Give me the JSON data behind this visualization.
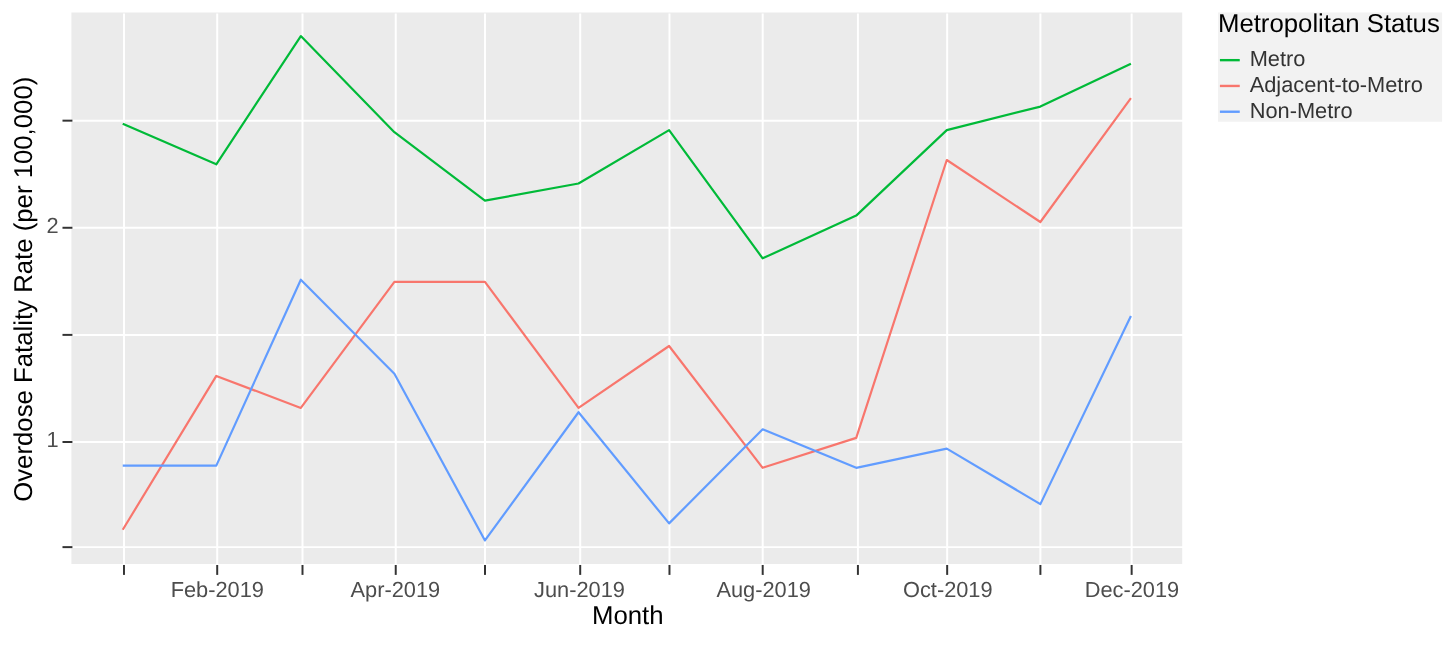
{
  "chart_data": {
    "type": "line",
    "xlabel": "Month",
    "ylabel": "Overdose Fatality Rate (per 100,000)",
    "legend_title": "Metropolitan Status",
    "legend": "right",
    "grid": true,
    "line_style": "solid",
    "marker": "none",
    "x": [
      "2019-01",
      "2019-02",
      "2019-03",
      "2019-04",
      "2019-05",
      "2019-06",
      "2019-07",
      "2019-08",
      "2019-09",
      "2019-10",
      "2019-11",
      "2019-12"
    ],
    "xlim": [
      "2018-12-15",
      "2019-12-18"
    ],
    "xticks": [
      {
        "value": "2019-01",
        "label": null
      },
      {
        "value": "2019-02",
        "label": "Feb-2019"
      },
      {
        "value": "2019-03",
        "label": null
      },
      {
        "value": "2019-04",
        "label": "Apr-2019"
      },
      {
        "value": "2019-05",
        "label": null
      },
      {
        "value": "2019-06",
        "label": "Jun-2019"
      },
      {
        "value": "2019-07",
        "label": null
      },
      {
        "value": "2019-08",
        "label": "Aug-2019"
      },
      {
        "value": "2019-09",
        "label": null
      },
      {
        "value": "2019-10",
        "label": "Oct-2019"
      },
      {
        "value": "2019-11",
        "label": null
      },
      {
        "value": "2019-12",
        "label": "Dec-2019"
      }
    ],
    "ylim": [
      0.42,
      3.0
    ],
    "yticks": [
      {
        "value": 0.5,
        "label": null
      },
      1,
      {
        "value": 1.5,
        "label": null
      },
      2,
      {
        "value": 2.5,
        "label": null
      }
    ],
    "series": [
      {
        "name": "Metro",
        "color": "#00ba38",
        "values": [
          2.48,
          2.29,
          2.89,
          2.44,
          2.12,
          2.2,
          2.45,
          1.85,
          2.05,
          2.45,
          2.56,
          2.76
        ]
      },
      {
        "name": "Adjacent-to-Metro",
        "color": "#f8766d",
        "values": [
          0.58,
          1.3,
          1.15,
          1.74,
          1.74,
          1.15,
          1.44,
          0.87,
          1.01,
          2.31,
          2.02,
          2.6
        ]
      },
      {
        "name": "Non-Metro",
        "color": "#619cff",
        "values": [
          0.88,
          0.88,
          1.75,
          1.31,
          0.53,
          1.13,
          0.61,
          1.05,
          0.87,
          0.96,
          0.7,
          1.58
        ]
      }
    ]
  }
}
